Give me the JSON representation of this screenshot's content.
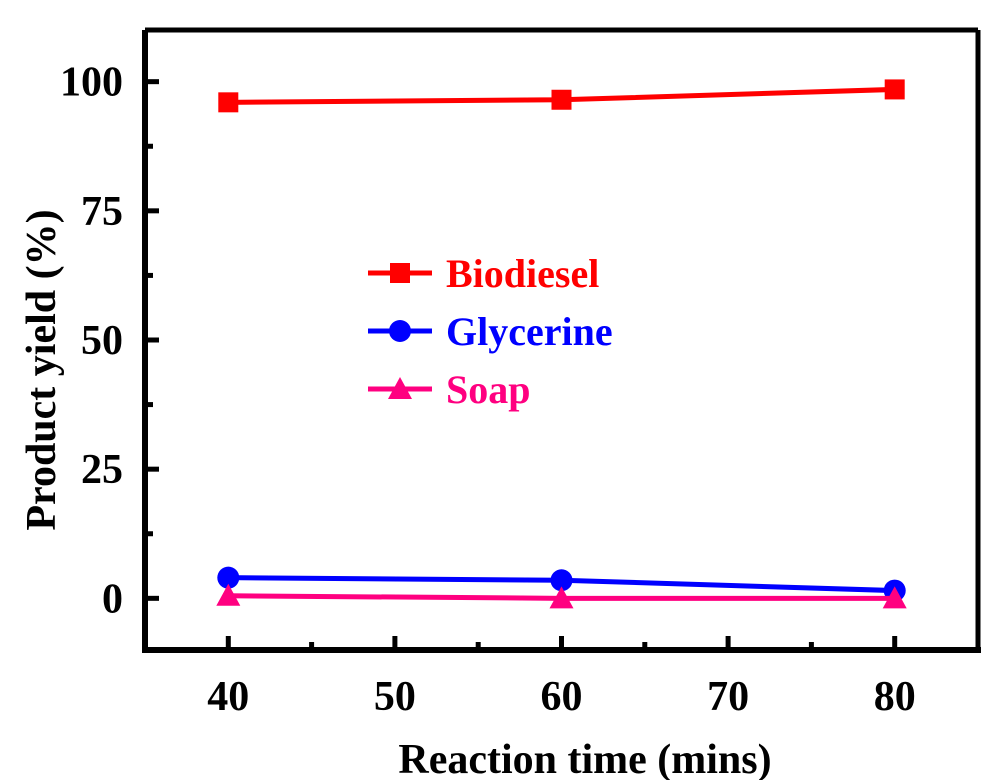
{
  "chart_data": {
    "type": "line",
    "x": [
      40,
      60,
      80
    ],
    "series": [
      {
        "name": "Biodiesel",
        "values": [
          96,
          96.5,
          98.5
        ],
        "color": "#ff0000",
        "marker": "square"
      },
      {
        "name": "Glycerine",
        "values": [
          4,
          3.5,
          1.5
        ],
        "color": "#0000ff",
        "marker": "circle"
      },
      {
        "name": "Soap",
        "values": [
          0.5,
          0,
          0
        ],
        "color": "#ff0080",
        "marker": "triangle"
      }
    ],
    "xlabel": "Reaction time (mins)",
    "ylabel": "Product yield (%)",
    "xlim": [
      35,
      85
    ],
    "ylim": [
      -10,
      110
    ],
    "xticks": [
      40,
      50,
      60,
      70,
      80
    ],
    "xtick_labels": [
      "40",
      "50",
      "60",
      "70",
      "80"
    ],
    "yticks": [
      0,
      25,
      50,
      75,
      100
    ],
    "ytick_labels": [
      "0",
      "25",
      "50",
      "75",
      "100"
    ],
    "grid": false,
    "legend_position": "center-left"
  }
}
